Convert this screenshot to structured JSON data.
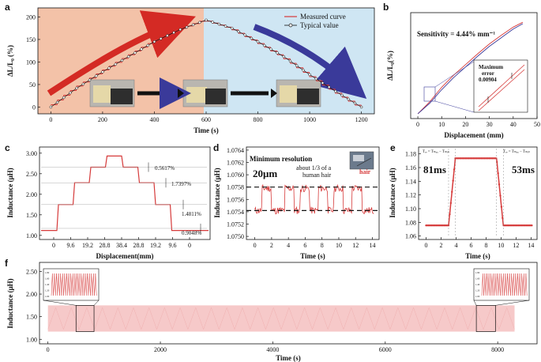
{
  "colors": {
    "red": "#d63a3a",
    "pink_bg": "#f3c2a8",
    "blue_bg": "#cfe6f3",
    "arrow_red": "#d42a24",
    "arrow_blue": "#3a3a9a"
  },
  "chart_data": [
    {
      "id": "a",
      "type": "line",
      "panel_label": "a",
      "xlabel": "Time (s)",
      "ylabel": "ΔL/L₀ (%)",
      "xlim": [
        -50,
        1250
      ],
      "ylim": [
        -15,
        220
      ],
      "xticks": [
        0,
        200,
        400,
        600,
        800,
        1000,
        1200
      ],
      "yticks": [
        0,
        50,
        100,
        150,
        200
      ],
      "legend": [
        "Measured curve",
        "Typical value"
      ],
      "legend_position": "top-right",
      "x": [
        0,
        100,
        200,
        300,
        400,
        500,
        600,
        700,
        800,
        900,
        1000,
        1100,
        1200
      ],
      "series": [
        {
          "name": "Measured curve",
          "values": [
            0,
            42,
            78,
            112,
            145,
            172,
            193,
            175,
            145,
            112,
            72,
            35,
            0
          ]
        }
      ]
    },
    {
      "id": "b",
      "type": "line",
      "panel_label": "b",
      "xlabel": "Displacement (mm)",
      "ylabel": "ΔL/L₀(%)",
      "xlim": [
        -3,
        50
      ],
      "ylim": [
        -10,
        210
      ],
      "xticks": [
        0,
        10,
        20,
        30,
        40,
        50
      ],
      "annotation": "Sensitivity = 4.44% mm⁻¹",
      "inset_text": [
        "Maximum",
        "error",
        "0.00904"
      ],
      "x": [
        0,
        5,
        10,
        15,
        20,
        25,
        30,
        35,
        40,
        44
      ],
      "series": [
        {
          "values": [
            0,
            25,
            55,
            80,
            102,
            124,
            145,
            163,
            180,
            190
          ]
        },
        {
          "values": [
            0,
            22,
            50,
            75,
            97,
            119,
            140,
            158,
            176,
            187
          ]
        }
      ]
    },
    {
      "id": "c",
      "type": "line",
      "panel_label": "c",
      "xlabel": "Displacement(mm)",
      "ylabel": "Inductance (μH)",
      "ylim": [
        0.9,
        3.15
      ],
      "xtick_labels": [
        "0",
        "9.6",
        "19.2",
        "28.8",
        "38.4",
        "28.8",
        "19.2",
        "9.6",
        "0"
      ],
      "yticks": [
        1.0,
        1.5,
        2.0,
        2.5,
        3.0
      ],
      "ytick_labels": [
        "1.00",
        "1.50",
        "2.00",
        "2.50",
        "3.00"
      ],
      "levels": [
        1.17,
        1.75,
        2.28,
        2.66,
        2.93,
        2.66,
        2.28,
        1.75,
        1.17
      ],
      "annotations": [
        "0.5617%",
        "1.7397%",
        "1.4811%",
        "0.9048%"
      ]
    },
    {
      "id": "d",
      "type": "line",
      "panel_label": "d",
      "xlabel": "Time (s)",
      "ylabel": "Inductance (μH)",
      "xlim": [
        -1,
        14.8
      ],
      "ylim": [
        1.07495,
        1.07645
      ],
      "xticks": [
        0,
        2,
        4,
        6,
        8,
        10,
        12,
        14
      ],
      "yticks": [
        1.075,
        1.0752,
        1.0754,
        1.0756,
        1.0758,
        1.076,
        1.0762,
        1.0764
      ],
      "ytick_labels": [
        "1.0750",
        "1.0752",
        "1.0754",
        "1.0756",
        "1.0758",
        "1.0760",
        "1.0762",
        "1.0764"
      ],
      "dashed_levels": [
        1.0758,
        1.07542
      ],
      "title": "Minimum resolution",
      "big_label": "20μm",
      "annotation": [
        "about 1/3 of a",
        "human hair"
      ],
      "inset_label": "hair",
      "low_value": 1.07542,
      "high_value": 1.07578,
      "high_intervals": [
        [
          0.8,
          2.0
        ],
        [
          3.6,
          4.7
        ],
        [
          5.4,
          6.5
        ],
        [
          7.6,
          8.7
        ],
        [
          9.4,
          10.5
        ],
        [
          11.6,
          12.8
        ]
      ]
    },
    {
      "id": "e",
      "type": "scatter",
      "panel_label": "e",
      "xlabel": "Time (s)",
      "ylabel": "Inductance (μH)",
      "xlim": [
        -1,
        14.8
      ],
      "ylim": [
        1.055,
        1.19
      ],
      "xticks": [
        0,
        2,
        4,
        6,
        8,
        10,
        12,
        14
      ],
      "yticks": [
        1.06,
        1.08,
        1.1,
        1.12,
        1.14,
        1.16,
        1.18
      ],
      "ytick_labels": [
        "1.06",
        "1.08",
        "1.10",
        "1.12",
        "1.14",
        "1.16",
        "1.18"
      ],
      "low_value": 1.0755,
      "high_value": 1.1735,
      "rise": [
        3.0,
        3.9
      ],
      "fall": [
        9.4,
        10.3
      ],
      "rise_label": "81ms",
      "fall_label": "53ms",
      "period_labels": [
        "Tᵣₑ = Tₘₐₓ − Tₘᵢₙ",
        "Tᵣₑ = Tₘₐₓ − Tₘᵢₙ"
      ]
    },
    {
      "id": "f",
      "type": "line",
      "panel_label": "f",
      "xlabel": "Time (s)",
      "ylabel": "Inductance (μH)",
      "xlim": [
        -150,
        8700
      ],
      "ylim": [
        0.9,
        2.7
      ],
      "xticks": [
        0,
        2000,
        4000,
        6000,
        8000
      ],
      "yticks": [
        1.0,
        1.5,
        2.0,
        2.5
      ],
      "ytick_labels": [
        "1.00",
        "1.50",
        "2.00",
        "2.50"
      ],
      "band": [
        1.17,
        1.75
      ],
      "duration": [
        0,
        8300
      ],
      "inset_ticks": [
        "1.80",
        "1.60",
        "1.40",
        "1.20",
        "1.00"
      ]
    }
  ]
}
